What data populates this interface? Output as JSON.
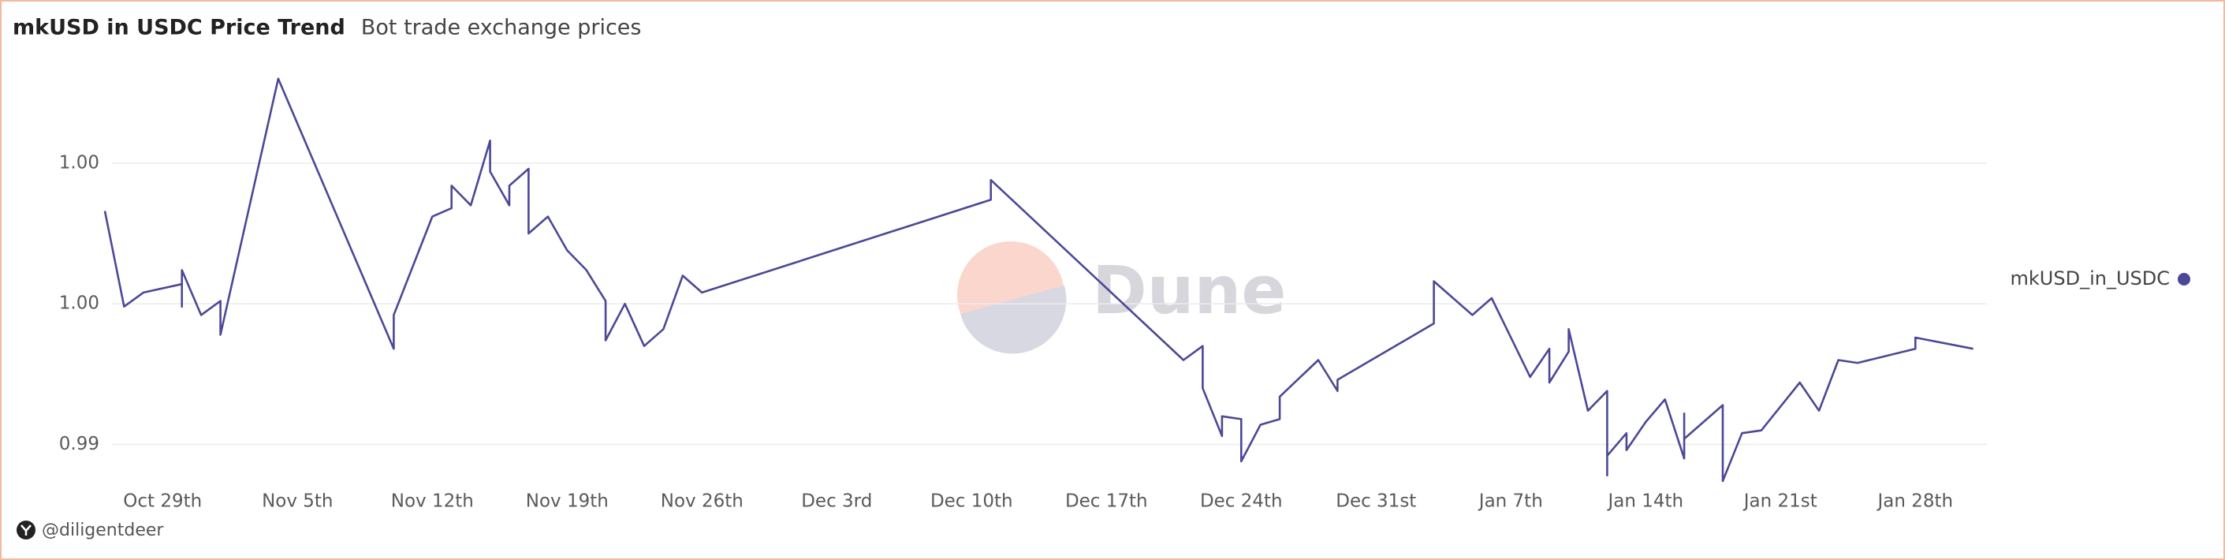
{
  "chart_data": {
    "type": "line",
    "title": "mkUSD in USDC Price Trend",
    "subtitle": "Bot trade exchange prices",
    "watermark": "Dune",
    "credit": "@diligentdeer",
    "x": [
      "Oct 26",
      "Oct 27",
      "Oct 28",
      "Oct 30",
      "Oct 30",
      "Oct 30",
      "Oct 31",
      "Nov 1",
      "Nov 1",
      "Nov 4",
      "Nov 10",
      "Nov 10",
      "Nov 12",
      "Nov 13",
      "Nov 13",
      "Nov 14",
      "Nov 15",
      "Nov 15",
      "Nov 16",
      "Nov 16",
      "Nov 17",
      "Nov 17",
      "Nov 17",
      "Nov 18",
      "Nov 19",
      "Nov 20",
      "Nov 21",
      "Nov 21",
      "Nov 22",
      "Nov 23",
      "Nov 24",
      "Nov 25",
      "Nov 26",
      "Dec 11",
      "Dec 11",
      "Dec 21",
      "Dec 22",
      "Dec 22",
      "Dec 23",
      "Dec 23",
      "Dec 24",
      "Dec 24",
      "Dec 25",
      "Dec 26",
      "Dec 26",
      "Dec 26",
      "Dec 28",
      "Dec 29",
      "Dec 29",
      "Jan 3",
      "Jan 3",
      "Jan 5",
      "Jan 6",
      "Jan 8",
      "Jan 9",
      "Jan 9",
      "Jan 10",
      "Jan 10",
      "Jan 11",
      "Jan 12",
      "Jan 12",
      "Jan 12",
      "Jan 13",
      "Jan 13",
      "Jan 14",
      "Jan 15",
      "Jan 16",
      "Jan 16",
      "Jan 16",
      "Jan 18",
      "Jan 18",
      "Jan 19",
      "Jan 20",
      "Jan 22",
      "Jan 23",
      "Jan 24",
      "Jan 25",
      "Jan 28",
      "Jan 28",
      "Jan 31"
    ],
    "series": [
      {
        "name": "mkUSD_in_USDC",
        "color": "#4b4896",
        "values": [
          1.0033,
          0.9999,
          1.0004,
          1.0007,
          0.9999,
          1.0012,
          0.9996,
          1.0001,
          0.9989,
          1.008,
          0.9984,
          0.9996,
          1.0031,
          1.0034,
          1.0042,
          1.0035,
          1.0058,
          1.0047,
          1.0035,
          1.0042,
          1.0048,
          1.0038,
          1.0025,
          1.0031,
          1.0019,
          1.0012,
          1.0001,
          0.9987,
          1.0,
          0.9985,
          0.9991,
          1.001,
          1.0004,
          1.0037,
          1.0044,
          0.998,
          0.9985,
          0.997,
          0.9953,
          0.996,
          0.9959,
          0.9944,
          0.9957,
          0.9959,
          0.9959,
          0.9967,
          0.998,
          0.9969,
          0.9973,
          0.9993,
          1.0008,
          0.9996,
          1.0002,
          0.9974,
          0.9984,
          0.9972,
          0.9983,
          0.9991,
          0.9962,
          0.9969,
          0.9939,
          0.9946,
          0.9954,
          0.9948,
          0.9958,
          0.9966,
          0.9945,
          0.9961,
          0.9952,
          0.9964,
          0.9937,
          0.9954,
          0.9955,
          0.9972,
          0.9962,
          0.998,
          0.9979,
          0.9984,
          0.9988,
          0.9984
        ]
      }
    ],
    "xlim": [
      "Oct 26",
      "Feb 1"
    ],
    "xticks": [
      {
        "value": "Oct 29",
        "label": "Oct 29th"
      },
      {
        "value": "Nov 5",
        "label": "Nov 5th"
      },
      {
        "value": "Nov 12",
        "label": "Nov 12th"
      },
      {
        "value": "Nov 19",
        "label": "Nov 19th"
      },
      {
        "value": "Nov 26",
        "label": "Nov 26th"
      },
      {
        "value": "Dec 3",
        "label": "Dec 3rd"
      },
      {
        "value": "Dec 10",
        "label": "Dec 10th"
      },
      {
        "value": "Dec 17",
        "label": "Dec 17th"
      },
      {
        "value": "Dec 24",
        "label": "Dec 24th"
      },
      {
        "value": "Dec 31",
        "label": "Dec 31st"
      },
      {
        "value": "Jan 7",
        "label": "Jan 7th"
      },
      {
        "value": "Jan 14",
        "label": "Jan 14th"
      },
      {
        "value": "Jan 21",
        "label": "Jan 21st"
      },
      {
        "value": "Jan 28",
        "label": "Jan 28th"
      }
    ],
    "ylim": [
      0.9935,
      1.0085
    ],
    "yticks": [
      {
        "value": 1.005,
        "label": "1.00"
      },
      {
        "value": 1,
        "label": "1.00"
      },
      {
        "value": 0.995,
        "label": "0.99"
      }
    ],
    "grid": true,
    "legend": "right"
  }
}
